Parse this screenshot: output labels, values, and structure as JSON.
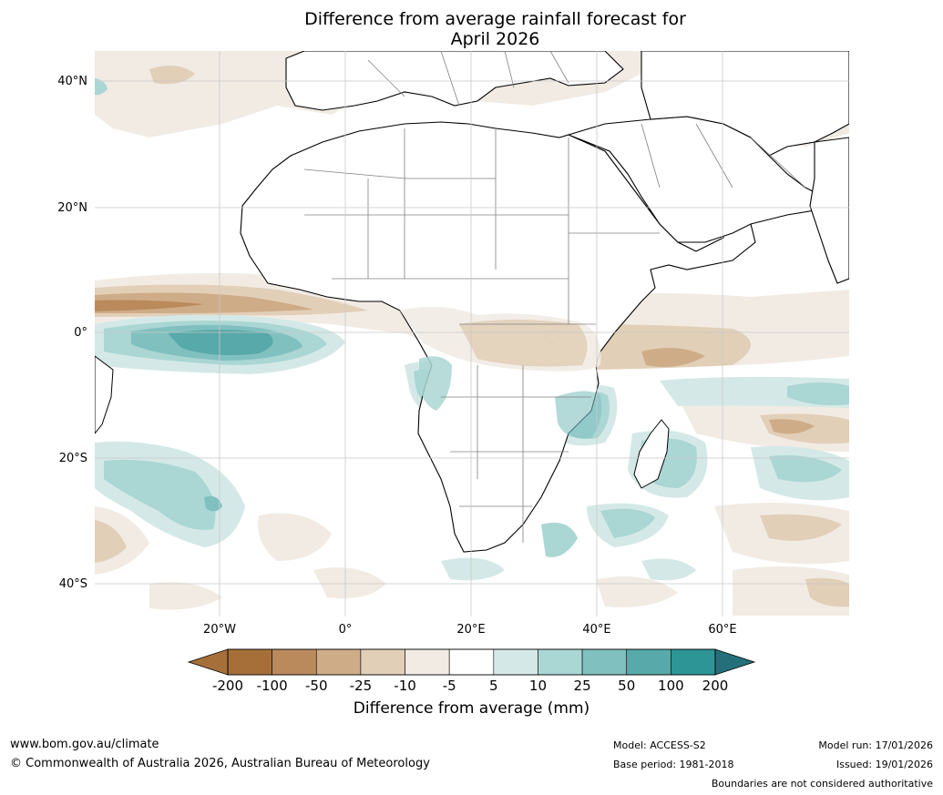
{
  "title": {
    "line1": "Difference from average rainfall forecast for",
    "line2": "April 2026"
  },
  "map": {
    "lat_labels": [
      "40°N",
      "20°N",
      "0°",
      "20°S",
      "40°S"
    ],
    "lon_labels": [
      "20°W",
      "0°",
      "20°E",
      "40°E",
      "60°E"
    ],
    "colors": {
      "ocean": "#ffffff",
      "land": "#ffffff",
      "coast": "#000000",
      "border": "#808080",
      "grid": "#c8c8c8"
    }
  },
  "colorbar": {
    "title": "Difference from average (mm)",
    "labels": [
      "-200",
      "-100",
      "-50",
      "-25",
      "-10",
      "-5",
      "5",
      "10",
      "25",
      "50",
      "100",
      "200"
    ],
    "colors": [
      "#a66f3a",
      "#ba8a5d",
      "#cfac88",
      "#e2cfb8",
      "#f1ebe4",
      "#ffffff",
      "#d4e9e7",
      "#aad6d4",
      "#80c1c0",
      "#58a9a9",
      "#2d9595",
      "#23707a"
    ]
  },
  "footer": {
    "website": "www.bom.gov.au/climate",
    "copyright": "© Commonwealth of Australia 2026, Australian Bureau of Meteorology",
    "model": "Model: ACCESS-S2",
    "base_period": "Base period: 1981-2018",
    "model_run": "Model run: 17/01/2026",
    "issued": "Issued: 19/01/2026",
    "disclaimer": "Boundaries are not considered authoritative"
  }
}
